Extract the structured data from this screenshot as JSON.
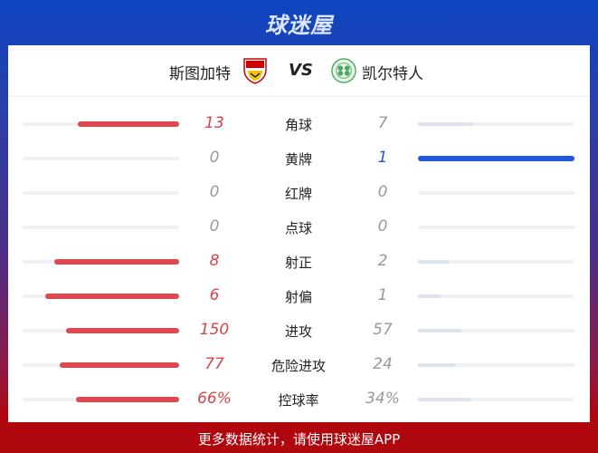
{
  "brand": "球迷屋",
  "match": {
    "home": "斯图加特",
    "away": "凯尔特人",
    "vs": "VS",
    "home_logo": "vfb-stuttgart-crest",
    "away_logo": "celtic-crest"
  },
  "colors": {
    "home_win": "#dc4a4f",
    "away_win": "#2356d8",
    "lose": "#dde3ec",
    "track": "#f0f1f4",
    "home_text": "#d9434a",
    "away_text": "#2356d8"
  },
  "stats": [
    {
      "label": "角球",
      "home": "13",
      "away": "7",
      "hv": 13,
      "av": 7
    },
    {
      "label": "黄牌",
      "home": "0",
      "away": "1",
      "hv": 0,
      "av": 1
    },
    {
      "label": "红牌",
      "home": "0",
      "away": "0",
      "hv": 0,
      "av": 0
    },
    {
      "label": "点球",
      "home": "0",
      "away": "0",
      "hv": 0,
      "av": 0
    },
    {
      "label": "射正",
      "home": "8",
      "away": "2",
      "hv": 8,
      "av": 2
    },
    {
      "label": "射偏",
      "home": "6",
      "away": "1",
      "hv": 6,
      "av": 1
    },
    {
      "label": "进攻",
      "home": "150",
      "away": "57",
      "hv": 150,
      "av": 57
    },
    {
      "label": "危险进攻",
      "home": "77",
      "away": "24",
      "hv": 77,
      "av": 24
    },
    {
      "label": "控球率",
      "home": "66%",
      "away": "34%",
      "hv": 66,
      "av": 34
    }
  ],
  "footer": "更多数据统计，请使用球迷屋APP"
}
